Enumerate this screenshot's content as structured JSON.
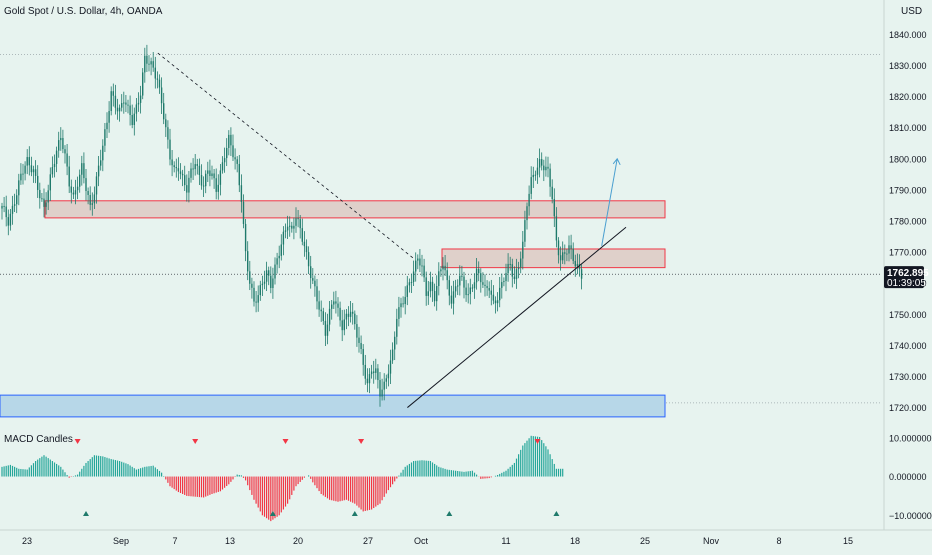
{
  "header": {
    "symbol_title": "Gold Spot / U.S. Dollar, 4h, OANDA",
    "currency": "USD"
  },
  "price_badge": {
    "price": "1762.895",
    "countdown": "01:39:05"
  },
  "indicator": {
    "title": "MACD Candles"
  },
  "colors": {
    "background": "#e7f3ef",
    "up_candle": "#1f7a6b",
    "down_candle": "#1f7a6b",
    "hist_positive": "#26a69a",
    "hist_negative": "#f23645",
    "zone_red_fill": "#ddc9c3",
    "zone_red_stroke": "#f23645",
    "zone_blue_fill": "#b7d7e8",
    "zone_blue_stroke": "#2962ff",
    "arrow": "#4a9fd0",
    "badge": "#131722",
    "signal_down": "#f23645",
    "signal_up": "#1f7a6b"
  },
  "chart_data": [
    {
      "type": "candlestick",
      "title": "Gold Spot / U.S. Dollar, 4h, OANDA",
      "xlabel": "",
      "ylabel": "USD",
      "x_ticks": [
        "23",
        "Sep",
        "7",
        "13",
        "20",
        "27",
        "Oct",
        "11",
        "18",
        "25",
        "Nov",
        "8",
        "15"
      ],
      "y_ticks": [
        "1840.000",
        "1830.000",
        "1820.000",
        "1810.000",
        "1800.000",
        "1790.000",
        "1780.000",
        "1770.000",
        "1760.000",
        "1750.000",
        "1740.000",
        "1730.000",
        "1720.000"
      ],
      "ylim": [
        1716,
        1844
      ],
      "last_price": 1762.895,
      "grid": false,
      "series": [
        {
          "close_path": [
            [
              0,
              1784
            ],
            [
              3,
              1780
            ],
            [
              6,
              1787
            ],
            [
              9,
              1794
            ],
            [
              12,
              1799
            ],
            [
              15,
              1797
            ],
            [
              18,
              1788
            ],
            [
              20,
              1783
            ],
            [
              22,
              1790
            ],
            [
              24,
              1798
            ],
            [
              26,
              1803
            ],
            [
              28,
              1807
            ],
            [
              30,
              1800
            ],
            [
              32,
              1792
            ],
            [
              34,
              1788
            ],
            [
              36,
              1793
            ],
            [
              38,
              1797
            ],
            [
              40,
              1790
            ],
            [
              42,
              1784
            ],
            [
              44,
              1790
            ],
            [
              46,
              1798
            ],
            [
              48,
              1804
            ],
            [
              50,
              1811
            ],
            [
              52,
              1821
            ],
            [
              54,
              1818
            ],
            [
              56,
              1816
            ],
            [
              58,
              1819
            ],
            [
              60,
              1815
            ],
            [
              62,
              1812
            ],
            [
              64,
              1817
            ],
            [
              66,
              1822
            ],
            [
              68,
              1832
            ],
            [
              70,
              1830
            ],
            [
              72,
              1829
            ],
            [
              74,
              1826
            ],
            [
              76,
              1819
            ],
            [
              78,
              1809
            ],
            [
              80,
              1800
            ],
            [
              82,
              1796
            ],
            [
              84,
              1798
            ],
            [
              86,
              1794
            ],
            [
              88,
              1790
            ],
            [
              90,
              1795
            ],
            [
              92,
              1799
            ],
            [
              94,
              1795
            ],
            [
              96,
              1792
            ],
            [
              98,
              1796
            ],
            [
              100,
              1794
            ],
            [
              102,
              1790
            ],
            [
              104,
              1796
            ],
            [
              106,
              1802
            ],
            [
              108,
              1806
            ],
            [
              110,
              1801
            ],
            [
              112,
              1797
            ],
            [
              114,
              1788
            ],
            [
              116,
              1770
            ],
            [
              118,
              1760
            ],
            [
              120,
              1753
            ],
            [
              122,
              1756
            ],
            [
              124,
              1761
            ],
            [
              126,
              1764
            ],
            [
              128,
              1759
            ],
            [
              130,
              1764
            ],
            [
              132,
              1770
            ],
            [
              134,
              1776
            ],
            [
              136,
              1780
            ],
            [
              138,
              1776
            ],
            [
              140,
              1781
            ],
            [
              142,
              1777
            ],
            [
              144,
              1773
            ],
            [
              146,
              1766
            ],
            [
              148,
              1760
            ],
            [
              150,
              1754
            ],
            [
              152,
              1750
            ],
            [
              154,
              1745
            ],
            [
              156,
              1751
            ],
            [
              158,
              1755
            ],
            [
              160,
              1750
            ],
            [
              162,
              1746
            ],
            [
              164,
              1750
            ],
            [
              166,
              1752
            ],
            [
              168,
              1746
            ],
            [
              170,
              1740
            ],
            [
              172,
              1734
            ],
            [
              174,
              1728
            ],
            [
              176,
              1733
            ],
            [
              178,
              1731
            ],
            [
              180,
              1724
            ],
            [
              182,
              1727
            ],
            [
              184,
              1733
            ],
            [
              186,
              1738
            ],
            [
              188,
              1749
            ],
            [
              190,
              1752
            ],
            [
              192,
              1756
            ],
            [
              194,
              1761
            ],
            [
              196,
              1764
            ],
            [
              198,
              1768
            ],
            [
              200,
              1764
            ],
            [
              202,
              1757
            ],
            [
              204,
              1760
            ],
            [
              206,
              1756
            ],
            [
              208,
              1762
            ],
            [
              210,
              1766
            ],
            [
              212,
              1760
            ],
            [
              214,
              1755
            ],
            [
              216,
              1759
            ],
            [
              218,
              1762
            ],
            [
              220,
              1758
            ],
            [
              222,
              1756
            ],
            [
              224,
              1760
            ],
            [
              226,
              1764
            ],
            [
              228,
              1761
            ],
            [
              230,
              1757
            ],
            [
              232,
              1759
            ],
            [
              234,
              1754
            ],
            [
              236,
              1756
            ],
            [
              238,
              1759
            ],
            [
              240,
              1763
            ],
            [
              242,
              1766
            ],
            [
              244,
              1762
            ],
            [
              246,
              1766
            ],
            [
              248,
              1772
            ],
            [
              250,
              1785
            ],
            [
              252,
              1793
            ],
            [
              254,
              1797
            ],
            [
              256,
              1799
            ],
            [
              258,
              1797
            ],
            [
              260,
              1795
            ],
            [
              262,
              1788
            ],
            [
              264,
              1774
            ],
            [
              266,
              1768
            ],
            [
              268,
              1769
            ],
            [
              270,
              1771
            ],
            [
              272,
              1768
            ],
            [
              274,
              1766
            ],
            [
              276,
              1763
            ]
          ]
        }
      ],
      "annotations": {
        "resistance_zone_upper": [
          1781,
          1786.5
        ],
        "resistance_zone_lower": [
          1765,
          1771
        ],
        "support_zone": [
          1717,
          1724
        ],
        "dotted_level": 1833.5,
        "dotted_level_low": 1721.5,
        "downtrend_line": [
          [
            68,
            1834
          ],
          [
            175,
            1768
          ]
        ],
        "uptrend_line": [
          [
            174,
            1720
          ],
          [
            270,
            1778
          ]
        ],
        "projection_arrow": [
          [
            257,
            1772
          ],
          [
            262,
            1800
          ]
        ]
      }
    },
    {
      "type": "bar",
      "title": "MACD Candles",
      "y_ticks": [
        "10.000000",
        "0.000000",
        "−10.000000"
      ],
      "ylim": [
        -12.5,
        12
      ],
      "series": [
        {
          "macd_path": [
            [
              0,
              2.5
            ],
            [
              4,
              3
            ],
            [
              8,
              2
            ],
            [
              12,
              1.8
            ],
            [
              16,
              4
            ],
            [
              20,
              5.5
            ],
            [
              24,
              4
            ],
            [
              28,
              2.5
            ],
            [
              32,
              -0.3
            ],
            [
              36,
              0.5
            ],
            [
              40,
              3.5
            ],
            [
              44,
              5.5
            ],
            [
              48,
              5.2
            ],
            [
              52,
              4.5
            ],
            [
              56,
              4
            ],
            [
              60,
              3.2
            ],
            [
              64,
              1.8
            ],
            [
              68,
              2.5
            ],
            [
              72,
              2.8
            ],
            [
              76,
              1
            ],
            [
              80,
              -2.5
            ],
            [
              84,
              -4
            ],
            [
              88,
              -5
            ],
            [
              92,
              -5.2
            ],
            [
              96,
              -5.4
            ],
            [
              100,
              -4.5
            ],
            [
              104,
              -3.8
            ],
            [
              108,
              -2
            ],
            [
              112,
              0.5
            ],
            [
              114,
              0.3
            ],
            [
              116,
              -1
            ],
            [
              120,
              -6
            ],
            [
              124,
              -10
            ],
            [
              128,
              -11.5
            ],
            [
              132,
              -10
            ],
            [
              136,
              -7
            ],
            [
              140,
              -2.5
            ],
            [
              144,
              -0.3
            ],
            [
              146,
              0.3
            ],
            [
              148,
              -1.5
            ],
            [
              152,
              -4.5
            ],
            [
              156,
              -6
            ],
            [
              160,
              -6.5
            ],
            [
              164,
              -6
            ],
            [
              168,
              -7
            ],
            [
              172,
              -9
            ],
            [
              176,
              -8.5
            ],
            [
              180,
              -7
            ],
            [
              184,
              -3.5
            ],
            [
              188,
              -0.5
            ],
            [
              192,
              2.5
            ],
            [
              196,
              4
            ],
            [
              200,
              4.2
            ],
            [
              204,
              4
            ],
            [
              208,
              2.5
            ],
            [
              212,
              1.8
            ],
            [
              216,
              1.5
            ],
            [
              220,
              1.2
            ],
            [
              224,
              1.5
            ],
            [
              226,
              0.5
            ],
            [
              228,
              -0.6
            ],
            [
              232,
              -0.4
            ],
            [
              236,
              0.4
            ],
            [
              240,
              1.5
            ],
            [
              244,
              3.5
            ],
            [
              248,
              8
            ],
            [
              252,
              10.5
            ],
            [
              256,
              10.2
            ],
            [
              260,
              7
            ],
            [
              264,
              2
            ]
          ]
        }
      ],
      "signals": {
        "down": [
          36,
          92,
          135,
          171,
          255
        ],
        "up": [
          40,
          129,
          168,
          213,
          264
        ]
      }
    }
  ]
}
